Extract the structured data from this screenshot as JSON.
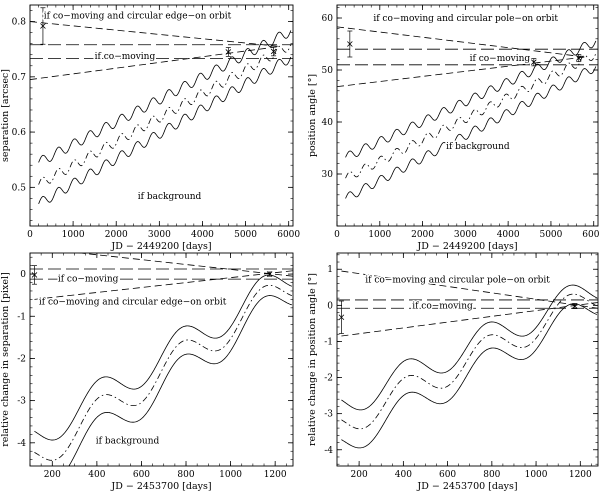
{
  "chart_data": [
    {
      "type": "line",
      "id": "top-left",
      "xlabel": "JD − 2449200 [days]",
      "ylabel": "separation [arcsec]",
      "xlim": [
        0,
        6100
      ],
      "ylim": [
        0.43,
        0.83
      ],
      "xticks": [
        0,
        1000,
        2000,
        3000,
        4000,
        5000,
        6000
      ],
      "yticks": [
        0.5,
        0.6,
        0.7,
        0.8
      ],
      "yminor": 0.02,
      "xminor": 200,
      "annotations": [
        {
          "text": "if co−moving and circular edge−on orbit",
          "x": 320,
          "y": 0.811
        },
        {
          "text": "if co−moving",
          "x": 1500,
          "y": 0.738
        },
        {
          "text": "if background",
          "x": 2500,
          "y": 0.484
        }
      ],
      "series": [
        {
          "name": "co-moving",
          "style": "longdash",
          "x": [
            0,
            6100
          ],
          "y": [
            0.733,
            0.733
          ]
        },
        {
          "name": "co-moving",
          "style": "longdash",
          "x": [
            0,
            6100
          ],
          "y": [
            0.758,
            0.758
          ]
        },
        {
          "name": "edge-on orbit upper",
          "style": "dash",
          "x": [
            0,
            5800
          ],
          "y": [
            0.8,
            0.755
          ]
        },
        {
          "name": "edge-on orbit lower",
          "style": "dash",
          "x": [
            0,
            5800
          ],
          "y": [
            0.695,
            0.755
          ]
        },
        {
          "name": "background",
          "style": "solid",
          "wave": {
            "x0": 200,
            "x1": 6050,
            "y0": 0.545,
            "y1": 0.783,
            "amp": 0.009,
            "period": 365.25
          }
        },
        {
          "name": "background",
          "style": "dashdot",
          "wave": {
            "x0": 200,
            "x1": 6050,
            "y0": 0.505,
            "y1": 0.758,
            "amp": 0.009,
            "period": 365.25
          }
        },
        {
          "name": "background",
          "style": "solid",
          "wave": {
            "x0": 200,
            "x1": 6050,
            "y0": 0.47,
            "y1": 0.735,
            "amp": 0.009,
            "period": 365.25
          }
        }
      ],
      "points": [
        {
          "x": 300,
          "y": 0.792,
          "err": 0.033
        },
        {
          "x": 4600,
          "y": 0.745,
          "err": 0.008
        },
        {
          "x": 5650,
          "y": 0.746,
          "err": 0.008
        }
      ]
    },
    {
      "type": "line",
      "id": "top-right",
      "xlabel": "JD − 2449200 [days]",
      "ylabel": "position angle [°]",
      "xlim": [
        0,
        6100
      ],
      "ylim": [
        20,
        62.5
      ],
      "xticks": [
        0,
        1000,
        2000,
        3000,
        4000,
        5000,
        6000
      ],
      "yticks": [
        30,
        40,
        50,
        60
      ],
      "yminor": 2,
      "xminor": 200,
      "annotations": [
        {
          "text": "if co−moving and circular pole−on orbit",
          "x": 850,
          "y": 60.0
        },
        {
          "text": "if co−moving",
          "x": 3100,
          "y": 52.3
        },
        {
          "text": "if background",
          "x": 2550,
          "y": 35.4
        }
      ],
      "series": [
        {
          "name": "co-moving",
          "style": "longdash",
          "x": [
            0,
            6100
          ],
          "y": [
            51.0,
            51.0
          ]
        },
        {
          "name": "co-moving",
          "style": "longdash",
          "x": [
            0,
            6100
          ],
          "y": [
            54.0,
            54.0
          ]
        },
        {
          "name": "pole-on orbit upper",
          "style": "dash",
          "x": [
            0,
            5800
          ],
          "y": [
            58.3,
            52.5
          ]
        },
        {
          "name": "pole-on orbit lower",
          "style": "dash",
          "x": [
            0,
            5800
          ],
          "y": [
            46.8,
            52.5
          ]
        },
        {
          "name": "background",
          "style": "solid",
          "wave": {
            "x0": 200,
            "x1": 6050,
            "y0": 33.2,
            "y1": 55.5,
            "amp": 0.85,
            "period": 365.25
          }
        },
        {
          "name": "background",
          "style": "dashdot",
          "wave": {
            "x0": 200,
            "x1": 6050,
            "y0": 29.2,
            "y1": 53.1,
            "amp": 0.85,
            "period": 365.25
          }
        },
        {
          "name": "background",
          "style": "solid",
          "wave": {
            "x0": 200,
            "x1": 6050,
            "y0": 25.3,
            "y1": 50.6,
            "amp": 0.85,
            "period": 365.25
          }
        }
      ],
      "points": [
        {
          "x": 300,
          "y": 55.0,
          "err": 2.5
        },
        {
          "x": 4600,
          "y": 51.5,
          "err": 0.7
        },
        {
          "x": 5650,
          "y": 52.3,
          "err": 0.7
        }
      ]
    },
    {
      "type": "line",
      "id": "bottom-left",
      "xlabel": "JD − 2453700 [days]",
      "ylabel": "relative change in separation [pixel]",
      "xlim": [
        100,
        1280
      ],
      "ylim": [
        -4.55,
        0.5
      ],
      "xticks": [
        200,
        400,
        600,
        800,
        1000,
        1200
      ],
      "yticks": [
        -4,
        -3,
        -2,
        -1,
        0
      ],
      "yminor": 0.2,
      "xminor": 50,
      "annotations": [
        {
          "text": "if co−moving",
          "x": 225,
          "y": -0.1
        },
        {
          "text": "if co−moving and circular edge−on orbit",
          "x": 140,
          "y": -0.65
        },
        {
          "text": "if background",
          "x": 395,
          "y": -3.95
        }
      ],
      "series": [
        {
          "name": "co-moving",
          "style": "longdash",
          "x": [
            100,
            1280
          ],
          "y": [
            -0.12,
            -0.12
          ]
        },
        {
          "name": "co-moving",
          "style": "longdash",
          "x": [
            100,
            1280
          ],
          "y": [
            0.12,
            0.12
          ]
        },
        {
          "name": "edge-on orbit upper",
          "style": "dash",
          "x": [
            120,
            1280
          ],
          "y": [
            0.62,
            -0.05
          ]
        },
        {
          "name": "edge-on orbit lower",
          "style": "dash",
          "x": [
            120,
            1280
          ],
          "y": [
            -0.6,
            0.08
          ]
        },
        {
          "name": "background",
          "style": "solid",
          "wave": {
            "x0": 120,
            "x1": 1275,
            "y0": -3.85,
            "y1": -0.03,
            "amp": 0.4,
            "period": 365.25,
            "phase": 0.45
          }
        },
        {
          "name": "background",
          "style": "dashdot",
          "wave": {
            "x0": 120,
            "x1": 1275,
            "y0": -4.35,
            "y1": -0.25,
            "amp": 0.4,
            "period": 365.25,
            "phase": 0.45
          }
        },
        {
          "name": "background",
          "style": "solid",
          "wave": {
            "x0": 120,
            "x1": 1275,
            "y0": -4.85,
            "y1": -0.47,
            "amp": 0.4,
            "period": 365.25,
            "phase": 0.45
          }
        }
      ],
      "points": [
        {
          "x": 120,
          "y": -0.02,
          "err": 0.22
        },
        {
          "x": 1175,
          "y": 0.0,
          "err": 0.05
        }
      ]
    },
    {
      "type": "line",
      "id": "bottom-right",
      "xlabel": "JD − 2453700 [days]",
      "ylabel": "relative change in position angle [°]",
      "xlim": [
        100,
        1280
      ],
      "ylim": [
        -4.45,
        1.45
      ],
      "xticks": [
        200,
        400,
        600,
        800,
        1000,
        1200
      ],
      "yticks": [
        -4,
        -3,
        -2,
        -1,
        0,
        1
      ],
      "yminor": 0.2,
      "xminor": 50,
      "annotations": [
        {
          "text": "if co−moving and circular pole−on orbit",
          "x": 228,
          "y": 0.72
        },
        {
          "text": "if co−moving",
          "x": 440,
          "y": 0.0
        }
      ],
      "series": [
        {
          "name": "co-moving",
          "style": "longdash",
          "x": [
            100,
            1280
          ],
          "y": [
            -0.08,
            -0.08
          ]
        },
        {
          "name": "co-moving",
          "style": "longdash",
          "x": [
            100,
            1280
          ],
          "y": [
            0.15,
            0.15
          ]
        },
        {
          "name": "pole-on orbit upper",
          "style": "dash",
          "x": [
            120,
            1280
          ],
          "y": [
            0.95,
            -0.08
          ]
        },
        {
          "name": "pole-on orbit lower",
          "style": "dash",
          "x": [
            120,
            1280
          ],
          "y": [
            -0.85,
            0.08
          ]
        },
        {
          "name": "background",
          "style": "solid",
          "wave": {
            "x0": 120,
            "x1": 1275,
            "y0": -2.75,
            "y1": 0.48,
            "amp": 0.42,
            "period": 365.25,
            "phase": 0.45
          }
        },
        {
          "name": "background",
          "style": "dashdot",
          "wave": {
            "x0": 120,
            "x1": 1275,
            "y0": -3.3,
            "y1": 0.26,
            "amp": 0.42,
            "period": 365.25,
            "phase": 0.45
          }
        },
        {
          "name": "background",
          "style": "solid",
          "wave": {
            "x0": 120,
            "x1": 1275,
            "y0": -3.85,
            "y1": 0.02,
            "amp": 0.42,
            "period": 365.25,
            "phase": 0.45
          }
        }
      ],
      "points": [
        {
          "x": 120,
          "y": -0.33,
          "err": 0.45
        },
        {
          "x": 1175,
          "y": -0.02,
          "err": 0.07
        }
      ]
    }
  ]
}
